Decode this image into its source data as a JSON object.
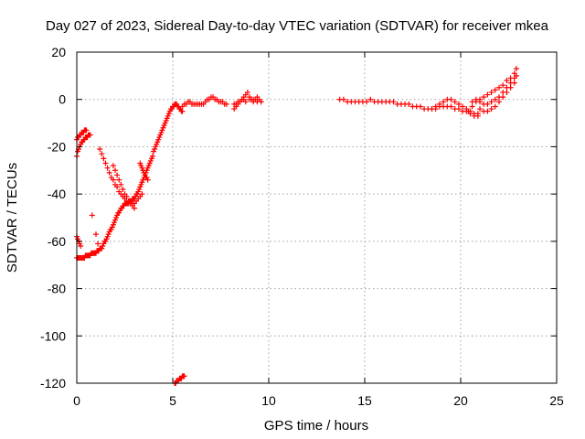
{
  "chart_data": {
    "type": "scatter",
    "title": "Day 027 of 2023, Sidereal Day-to-day VTEC variation (SDTVAR) for receiver mkea",
    "xlabel": "GPS time / hours",
    "ylabel": "SDTVAR / TECUs",
    "xlim": [
      0,
      25
    ],
    "ylim": [
      -120,
      20
    ],
    "xticks": [
      0,
      5,
      10,
      15,
      20,
      25
    ],
    "yticks": [
      20,
      0,
      -20,
      -40,
      -60,
      -80,
      -100,
      -120
    ],
    "grid": true,
    "marker": "plus",
    "color": "#ff0000",
    "series": [
      {
        "x": [
          0.0,
          0.05,
          0.1,
          0.15,
          0.2,
          0.25,
          0.3,
          0.35,
          0.4,
          0.45,
          0.5,
          0.55,
          0.6,
          0.65,
          0.7,
          0.75,
          0.8,
          0.85,
          0.9,
          0.95,
          1.0,
          1.05,
          1.1,
          1.15,
          1.2,
          1.25,
          1.3,
          1.35,
          1.4,
          1.45,
          1.5,
          1.55,
          1.6,
          1.65,
          1.7,
          1.75,
          1.8,
          1.85,
          1.9,
          1.95,
          2.0,
          2.05,
          2.1,
          2.15,
          2.2,
          2.25,
          2.3,
          2.35,
          2.4,
          2.45,
          2.5,
          2.55,
          2.6,
          2.65,
          2.7,
          2.75,
          2.8,
          2.85,
          2.9,
          2.95,
          3.0,
          3.05,
          3.1,
          3.15,
          3.2,
          3.25,
          3.3,
          3.35,
          3.4,
          3.45,
          3.5,
          3.55,
          3.6,
          3.65,
          3.7,
          3.75,
          3.8,
          3.85,
          3.9,
          3.95,
          4.0,
          4.05,
          4.1,
          4.15,
          4.2,
          4.25,
          4.3,
          4.35,
          4.4,
          4.45,
          4.5,
          4.55,
          4.6,
          4.65,
          4.7,
          4.75,
          4.8,
          4.85,
          4.9,
          4.95,
          5.0,
          5.05,
          5.1,
          5.15,
          5.2,
          5.25,
          5.3,
          5.35,
          5.4,
          5.45,
          5.5
        ],
        "y": [
          -67,
          -67,
          -67,
          -67,
          -67,
          -67,
          -67,
          -67,
          -67,
          -66,
          -66,
          -66,
          -66,
          -66,
          -66,
          -65,
          -65,
          -65,
          -65,
          -65,
          -65,
          -64,
          -64,
          -64,
          -63,
          -63,
          -63,
          -62,
          -61,
          -60,
          -60,
          -59,
          -58,
          -57,
          -56,
          -55,
          -55,
          -54,
          -53,
          -52,
          -51,
          -50,
          -49,
          -48,
          -48,
          -47,
          -46,
          -46,
          -45,
          -45,
          -44,
          -44,
          -44,
          -44,
          -43,
          -43,
          -43,
          -43,
          -42,
          -42,
          -42,
          -41,
          -40,
          -40,
          -39,
          -38,
          -37,
          -36,
          -35,
          -34,
          -33,
          -32,
          -31,
          -30,
          -29,
          -28,
          -27,
          -26,
          -25,
          -24,
          -22,
          -21,
          -20,
          -19,
          -18,
          -17,
          -16,
          -15,
          -14,
          -13,
          -12,
          -11,
          -10,
          -9,
          -8,
          -7,
          -6,
          -5,
          -4,
          -4,
          -3,
          -3,
          -2,
          -2,
          -2,
          -3,
          -3,
          -4,
          -4,
          -5,
          -5
        ]
      },
      {
        "x": [
          0.0,
          0.05,
          0.1,
          0.15,
          0.2,
          0.25,
          0.3,
          0.35,
          0.4,
          0.45,
          0.5,
          0.55,
          0.6,
          0.65,
          0.7
        ],
        "y": [
          -24,
          -22,
          -21,
          -20,
          -19,
          -18,
          -18,
          -17,
          -17,
          -16,
          -16,
          -16,
          -15,
          -15,
          -15
        ]
      },
      {
        "x": [
          0.0,
          0.05,
          0.1,
          0.15,
          0.2,
          0.25,
          0.3,
          0.35,
          0.4,
          0.45,
          0.5
        ],
        "y": [
          -17,
          -16,
          -16,
          -15,
          -15,
          -14,
          -14,
          -14,
          -13,
          -13,
          -13
        ]
      },
      {
        "x": [
          0.0,
          0.05,
          0.1,
          0.15,
          0.2
        ],
        "y": [
          -58,
          -59,
          -60,
          -61,
          -62
        ]
      },
      {
        "x": [
          0.8,
          1.0,
          1.1
        ],
        "y": [
          -49,
          -57,
          -61
        ]
      },
      {
        "x": [
          1.2,
          1.3,
          1.4,
          1.5,
          1.6,
          1.7,
          1.8,
          1.9,
          2.0,
          2.1,
          2.2,
          2.3,
          2.4,
          2.5,
          2.6,
          2.7,
          2.8,
          2.9,
          3.0,
          3.1,
          3.2,
          3.3,
          3.4
        ],
        "y": [
          -21,
          -23,
          -25,
          -27,
          -29,
          -31,
          -33,
          -34,
          -36,
          -37,
          -39,
          -40,
          -41,
          -42,
          -43,
          -44,
          -44,
          -44,
          -44,
          -43,
          -42,
          -41,
          -40
        ]
      },
      {
        "x": [
          1.9,
          2.0,
          2.1,
          2.2,
          2.3,
          2.4,
          2.5,
          2.6,
          2.7,
          2.8,
          2.9,
          3.0
        ],
        "y": [
          -28,
          -30,
          -32,
          -34,
          -36,
          -38,
          -40,
          -41,
          -43,
          -44,
          -45,
          -46
        ]
      },
      {
        "x": [
          3.3,
          3.35,
          3.4,
          3.45,
          3.5,
          3.55,
          3.6,
          3.65,
          3.7
        ],
        "y": [
          -27,
          -28,
          -29,
          -30,
          -31,
          -32,
          -33,
          -33,
          -34
        ]
      },
      {
        "x": [
          5.1,
          5.15,
          5.2,
          5.25,
          5.3,
          5.35,
          5.4,
          5.45,
          5.5,
          5.55,
          5.6
        ],
        "y": [
          -120,
          -120,
          -119,
          -119,
          -119,
          -118,
          -118,
          -118,
          -117,
          -117,
          -117
        ]
      },
      {
        "x": [
          5.5,
          5.6,
          5.7,
          5.8,
          5.9,
          6.0,
          6.1,
          6.2,
          6.3,
          6.4,
          6.5,
          6.6,
          6.7,
          6.8,
          6.9,
          7.0,
          7.1,
          7.2,
          7.3,
          7.4,
          7.5,
          7.6,
          7.7,
          7.8
        ],
        "y": [
          -3,
          -2,
          -2,
          -1,
          -1,
          -2,
          -2,
          -2,
          -2,
          -2,
          -2,
          -2,
          -1,
          0,
          0,
          1,
          1,
          0,
          0,
          -1,
          -1,
          -1,
          -2,
          -2
        ]
      },
      {
        "x": [
          8.2,
          8.3,
          8.4,
          8.5,
          8.6,
          8.7,
          8.8,
          8.9,
          9.0,
          9.1,
          9.2,
          9.3,
          9.4,
          9.5,
          9.6
        ],
        "y": [
          -4,
          -3,
          -2,
          -1,
          0,
          1,
          2,
          3,
          1,
          0,
          -1,
          0,
          1,
          0,
          -1
        ]
      },
      {
        "x": [
          8.2,
          8.3,
          8.4,
          8.5,
          8.6,
          8.7,
          8.8,
          9.0,
          9.2,
          9.4,
          9.6
        ],
        "y": [
          -2,
          -2,
          -1,
          -1,
          0,
          0,
          -1,
          0,
          0,
          -1,
          -1
        ]
      },
      {
        "x": [
          13.7,
          13.9,
          14.1,
          14.3,
          14.5,
          14.7,
          14.9,
          15.1,
          15.3,
          15.5,
          15.7,
          15.9,
          16.1,
          16.3,
          16.5,
          16.7,
          16.9,
          17.1,
          17.3,
          17.5,
          17.7,
          17.9,
          18.1,
          18.3,
          18.5,
          18.7,
          18.9,
          19.1,
          19.3,
          19.5,
          19.7,
          19.9,
          20.1,
          20.3,
          20.5,
          20.7,
          20.9
        ],
        "y": [
          0,
          0,
          -1,
          -1,
          -1,
          -1,
          -1,
          -1,
          0,
          -1,
          -1,
          -1,
          -1,
          -1,
          -1,
          -2,
          -2,
          -2,
          -2,
          -3,
          -3,
          -3,
          -4,
          -4,
          -4,
          -3,
          -2,
          -1,
          0,
          0,
          -1,
          -2,
          -3,
          -4,
          -5,
          -6,
          -6
        ]
      },
      {
        "x": [
          18.5,
          18.7,
          18.9,
          19.1,
          19.3,
          19.5,
          19.7,
          19.9,
          20.1,
          20.3,
          20.5,
          20.7,
          20.9
        ],
        "y": [
          -4,
          -4,
          -3,
          -3,
          -3,
          -3,
          -4,
          -4,
          -5,
          -5,
          -6,
          -7,
          -7
        ]
      },
      {
        "x": [
          20.4,
          20.6,
          20.8,
          21.0,
          21.2,
          21.4,
          21.6,
          21.8,
          22.0,
          22.2,
          22.4,
          22.6,
          22.8,
          22.9
        ],
        "y": [
          -5,
          -3,
          -1,
          0,
          1,
          2,
          3,
          4,
          5,
          6,
          8,
          9,
          11,
          13
        ]
      },
      {
        "x": [
          20.6,
          20.8,
          21.0,
          21.2,
          21.4,
          21.6,
          21.8,
          22.0,
          22.2,
          22.4,
          22.6,
          22.8,
          22.9
        ],
        "y": [
          -1,
          0,
          -1,
          -2,
          -2,
          -1,
          0,
          1,
          3,
          5,
          7,
          9,
          10
        ]
      },
      {
        "x": [
          21.0,
          21.2,
          21.4,
          21.6,
          21.8,
          22.0,
          22.2,
          22.4,
          22.6,
          22.8
        ],
        "y": [
          -4,
          -5,
          -5,
          -4,
          -3,
          -1,
          1,
          3,
          5,
          7
        ]
      }
    ]
  }
}
